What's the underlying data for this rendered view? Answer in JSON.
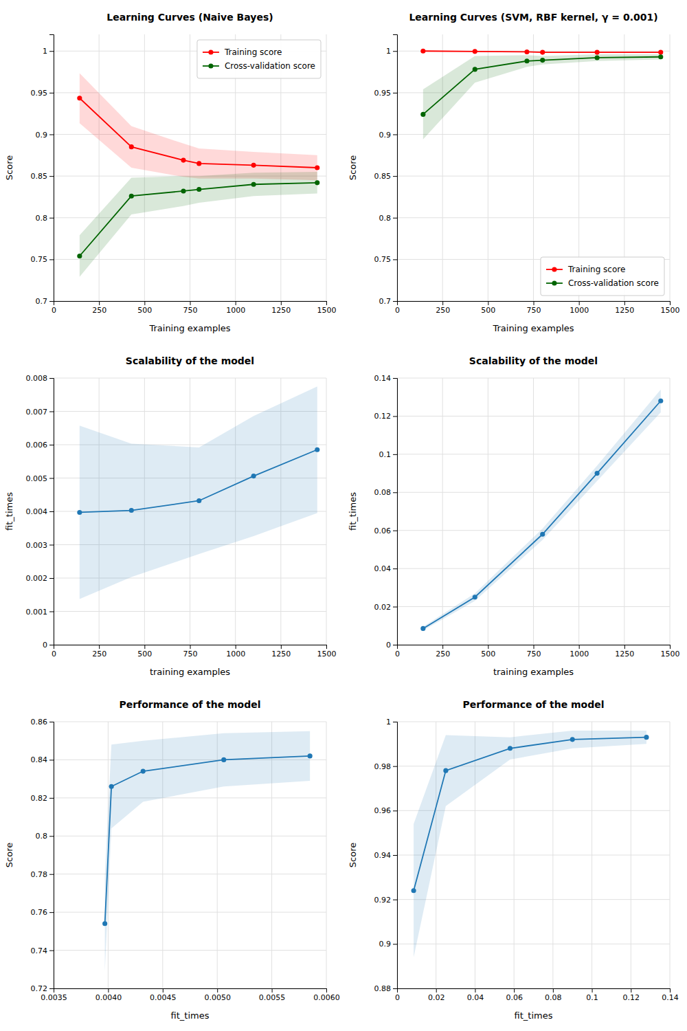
{
  "chart_data": [
    {
      "type": "line",
      "title": "Learning Curves (Naive Bayes)",
      "xlabel": "Training examples",
      "ylabel": "Score",
      "x": [
        143,
        428,
        714,
        800,
        1100,
        1450
      ],
      "series": [
        {
          "name": "Training score",
          "color": "#ff0000",
          "marker": "circle",
          "values": [
            0.9435,
            0.885,
            0.869,
            0.865,
            0.863,
            0.86
          ],
          "std": [
            0.03,
            0.025,
            0.02,
            0.018,
            0.016,
            0.015
          ]
        },
        {
          "name": "Cross-validation score",
          "color": "#006400",
          "marker": "circle",
          "values": [
            0.754,
            0.826,
            0.832,
            0.834,
            0.84,
            0.842
          ],
          "std": [
            0.025,
            0.022,
            0.018,
            0.016,
            0.014,
            0.013
          ]
        }
      ],
      "xlim": [
        0,
        1500
      ],
      "xticks": [
        0,
        250,
        500,
        750,
        1000,
        1250,
        1500
      ],
      "ylim": [
        0.7,
        1.02
      ],
      "yticks": [
        0.7,
        0.75,
        0.8,
        0.85,
        0.9,
        0.95,
        1
      ],
      "grid": true,
      "legend": "upper right"
    },
    {
      "type": "line",
      "title": "Learning Curves (SVM, RBF kernel, γ = 0.001)",
      "xlabel": "Training examples",
      "ylabel": "Score",
      "x": [
        143,
        428,
        714,
        800,
        1100,
        1450
      ],
      "series": [
        {
          "name": "Training score",
          "color": "#ff0000",
          "marker": "circle",
          "values": [
            1.0,
            0.9995,
            0.999,
            0.9985,
            0.9985,
            0.9985
          ],
          "std": [
            0.0003,
            0.0003,
            0.0003,
            0.0003,
            0.0003,
            0.0003
          ]
        },
        {
          "name": "Cross-validation score",
          "color": "#006400",
          "marker": "circle",
          "values": [
            0.924,
            0.978,
            0.988,
            0.989,
            0.992,
            0.993
          ],
          "std": [
            0.03,
            0.016,
            0.007,
            0.005,
            0.004,
            0.003
          ]
        }
      ],
      "xlim": [
        0,
        1500
      ],
      "xticks": [
        0,
        250,
        500,
        750,
        1000,
        1250,
        1500
      ],
      "ylim": [
        0.7,
        1.02
      ],
      "yticks": [
        0.7,
        0.75,
        0.8,
        0.85,
        0.9,
        0.95,
        1
      ],
      "grid": true,
      "legend": "lower right"
    },
    {
      "type": "line",
      "title": "Scalability of the model",
      "xlabel": "training examples",
      "ylabel": "fit_times",
      "x": [
        143,
        428,
        800,
        1100,
        1450
      ],
      "series": [
        {
          "color": "#1f77b4",
          "marker": "circle",
          "values": [
            0.00397,
            0.00403,
            0.00432,
            0.00506,
            0.00585
          ],
          "std": [
            0.0026,
            0.002,
            0.0016,
            0.0018,
            0.0019
          ]
        }
      ],
      "xlim": [
        0,
        1500
      ],
      "xticks": [
        0,
        250,
        500,
        750,
        1000,
        1250,
        1500
      ],
      "ylim": [
        0,
        0.008
      ],
      "yticks": [
        0,
        0.001,
        0.002,
        0.003,
        0.004,
        0.005,
        0.006,
        0.007,
        0.008
      ],
      "grid": true
    },
    {
      "type": "line",
      "title": "Scalability of the model",
      "xlabel": "training examples",
      "ylabel": "fit_times",
      "x": [
        143,
        428,
        800,
        1100,
        1450
      ],
      "series": [
        {
          "color": "#1f77b4",
          "marker": "circle",
          "values": [
            0.0085,
            0.025,
            0.058,
            0.09,
            0.128
          ],
          "std": [
            0.001,
            0.002,
            0.003,
            0.004,
            0.006
          ]
        }
      ],
      "xlim": [
        0,
        1500
      ],
      "xticks": [
        0,
        250,
        500,
        750,
        1000,
        1250,
        1500
      ],
      "ylim": [
        0,
        0.14
      ],
      "yticks": [
        0,
        0.02,
        0.04,
        0.06,
        0.08,
        0.1,
        0.12,
        0.14
      ],
      "grid": true
    },
    {
      "type": "line",
      "title": "Performance of the model",
      "xlabel": "fit_times",
      "ylabel": "Score",
      "x": [
        0.00397,
        0.00403,
        0.00432,
        0.00506,
        0.00585
      ],
      "series": [
        {
          "color": "#1f77b4",
          "marker": "circle",
          "values": [
            0.754,
            0.826,
            0.834,
            0.84,
            0.842
          ],
          "std": [
            0.025,
            0.022,
            0.016,
            0.014,
            0.013
          ]
        }
      ],
      "xlim": [
        0.0035,
        0.006
      ],
      "xticks": [
        0.0035,
        {
          "value": 0.004,
          "label": "0.0040"
        },
        0.0045,
        {
          "value": 0.005,
          "label": "0.0050"
        },
        0.0055,
        {
          "value": 0.006,
          "label": "0.0060"
        }
      ],
      "ylim": [
        0.72,
        0.86
      ],
      "yticks": [
        0.72,
        0.74,
        0.76,
        0.78,
        0.8,
        0.82,
        0.84,
        0.86
      ],
      "grid": true
    },
    {
      "type": "line",
      "title": "Performance of the model",
      "xlabel": "fit_times",
      "ylabel": "Score",
      "x": [
        0.0085,
        0.025,
        0.058,
        0.09,
        0.128
      ],
      "series": [
        {
          "color": "#1f77b4",
          "marker": "circle",
          "values": [
            0.924,
            0.978,
            0.988,
            0.992,
            0.993
          ],
          "std": [
            0.03,
            0.016,
            0.005,
            0.004,
            0.003
          ]
        }
      ],
      "xlim": [
        0,
        0.14
      ],
      "xticks": [
        0,
        0.02,
        0.04,
        0.06,
        0.08,
        0.1,
        0.12,
        0.14
      ],
      "ylim": [
        0.88,
        1
      ],
      "yticks": [
        0.88,
        0.9,
        0.92,
        0.94,
        0.96,
        0.98,
        1
      ],
      "grid": true
    }
  ]
}
